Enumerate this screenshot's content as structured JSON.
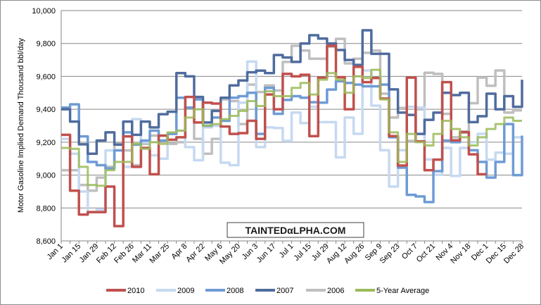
{
  "chart_data": {
    "type": "line",
    "title": "",
    "xlabel": "",
    "ylabel": "Motor Gasoline Implied Demand Thousand bbl/day",
    "ylim": [
      8600,
      10000
    ],
    "yticks": [
      8600,
      8800,
      9000,
      9200,
      9400,
      9600,
      9800,
      10000
    ],
    "ytick_labels": [
      "8,600",
      "8,800",
      "9,000",
      "9,200",
      "9,400",
      "9,600",
      "9,800",
      "10,000"
    ],
    "x_unit": "week of year (0 = Jan 1)",
    "xlim": [
      0,
      52
    ],
    "xtick_labels": [
      "Jan 1",
      "Jan 15",
      "Jan 29",
      "Feb 12",
      "Feb 26",
      "Mar 11",
      "Mar 25",
      "Apr 8",
      "Apr 22",
      "May 6",
      "May 20",
      "Jun 3",
      "Jun 17",
      "Jul 1",
      "Jul 15",
      "Jul 29",
      "Aug 12",
      "Aug 26",
      "Sep 9",
      "Sep 23",
      "Oct 7",
      "Oct 21",
      "Nov 4",
      "Nov 18",
      "Dec 1",
      "Dec 15",
      "Dec 28"
    ],
    "grid": true,
    "legend_position": "bottom",
    "series": [
      {
        "name": "2010",
        "color": "#C0504D",
        "values": [
          9245,
          8905,
          8760,
          8775,
          8775,
          8930,
          8690,
          9235,
          9050,
          9165,
          9005,
          9240,
          9215,
          9230,
          9475,
          9320,
          9440,
          9435,
          9295,
          9250,
          9255,
          9330,
          9220,
          9490,
          9400,
          9615,
          9600,
          9610,
          9237,
          9593,
          9786,
          9595,
          9400,
          9658,
          9565,
          9590,
          9465,
          9237,
          9058,
          9593,
          9205,
          9030,
          9094,
          9565,
          9211,
          9261,
          9126,
          9005
        ]
      },
      {
        "name": "2009",
        "color": "#C6D9F1",
        "values": [
          9220,
          9130,
          8900,
          8775,
          8790,
          9150,
          9150,
          9050,
          9340,
          9200,
          9120,
          9100,
          9250,
          9270,
          9170,
          9090,
          9290,
          9300,
          9075,
          9060,
          9440,
          9690,
          9170,
          9290,
          9286,
          9208,
          9380,
          9316,
          9415,
          9322,
          9322,
          9108,
          9350,
          9251,
          9636,
          9422,
          9151,
          8930,
          9151,
          9415,
          9410,
          9095,
          9002,
          9165,
          8995,
          9165,
          9200,
          9251,
          9094,
          9137,
          9130,
          9230
        ]
      },
      {
        "name": "2008",
        "color": "#6E9BD5",
        "values": [
          9410,
          9430,
          9235,
          9080,
          9060,
          9040,
          9150,
          9260,
          9185,
          9210,
          9270,
          9210,
          9250,
          9470,
          9410,
          9460,
          9300,
          9350,
          9330,
          9470,
          9480,
          9500,
          9250,
          9530,
          9372,
          9457,
          9480,
          9470,
          9443,
          9440,
          9520,
          9570,
          9560,
          9550,
          9540,
          9540,
          9550,
          9230,
          9045,
          8880,
          8870,
          8836,
          9024,
          9210,
          9200,
          9260,
          9151,
          9080,
          8985,
          9080,
          9310,
          9000,
          9240
        ]
      },
      {
        "name": "2007",
        "color": "#4F6C9E",
        "values": [
          9400,
          9325,
          9187,
          9130,
          9210,
          9260,
          9185,
          9325,
          9245,
          9325,
          9290,
          9370,
          9385,
          9620,
          9600,
          9475,
          9320,
          9390,
          9470,
          9545,
          9575,
          9625,
          9635,
          9620,
          9730,
          9715,
          9688,
          9800,
          9850,
          9830,
          9800,
          9760,
          9700,
          9670,
          9880,
          9737,
          9737,
          9521,
          9380,
          9366,
          9250,
          9336,
          9380,
          9500,
          9486,
          9500,
          9322,
          9358,
          9495,
          9400,
          9480,
          9415,
          9580
        ]
      },
      {
        "name": "2006",
        "color": "#BFBFBF",
        "values": [
          9030,
          9030,
          8940,
          8905,
          8985,
          9050,
          9190,
          9150,
          9060,
          9190,
          9240,
          9240,
          9190,
          9200,
          9410,
          9220,
          9130,
          9220,
          9460,
          9450,
          9310,
          9550,
          9505,
          9545,
          9514,
          9688,
          9786,
          9757,
          9707,
          9707,
          9780,
          9828,
          9679,
          9707,
          9743,
          9757,
          9495,
          9350,
          9408,
          9208,
          9400,
          9622,
          9615,
          9372,
          9230,
          9265,
          9437,
          9593,
          9543,
          9636,
          9380,
          9393
        ]
      },
      {
        "name": "5-Year Average",
        "color": "#9BBB59",
        "values": [
          9165,
          9160,
          9050,
          8940,
          8935,
          9030,
          9080,
          9080,
          9190,
          9160,
          9200,
          9190,
          9260,
          9270,
          9350,
          9400,
          9300,
          9310,
          9340,
          9360,
          9390,
          9450,
          9420,
          9510,
          9480,
          9480,
          9530,
          9560,
          9490,
          9580,
          9620,
          9580,
          9500,
          9600,
          9590,
          9640,
          9460,
          9260,
          9080,
          9250,
          9200,
          9180,
          9250,
          9330,
          9280,
          9230,
          9180,
          9230,
          9280,
          9310,
          9350,
          9330
        ]
      }
    ]
  },
  "watermark": {
    "text": "TAINTEDαLPHA.COM"
  }
}
